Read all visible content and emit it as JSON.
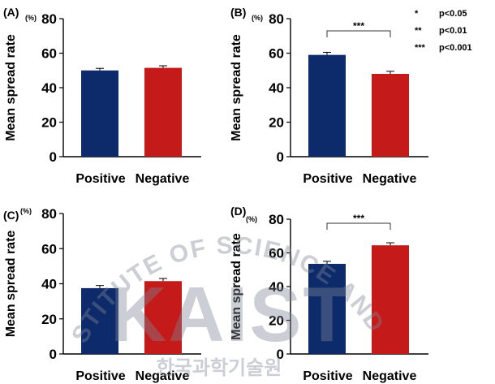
{
  "chart_data": [
    {
      "panel": "(A)",
      "type": "bar",
      "unit": "(%)",
      "ylabel": "Mean spread rate",
      "categories": [
        "Positive",
        "Negative"
      ],
      "values": [
        50,
        51.5
      ],
      "errors": [
        1.2,
        1.2
      ],
      "ylim": [
        0,
        80
      ],
      "yticks": [
        "0",
        "20",
        "40",
        "60",
        "80"
      ],
      "significance": "",
      "colors": [
        "#0d2a6b",
        "#c41a1a"
      ]
    },
    {
      "panel": "(B)",
      "type": "bar",
      "unit": "(%)",
      "ylabel": "Mean spread rate",
      "categories": [
        "Positive",
        "Negative"
      ],
      "values": [
        59,
        48
      ],
      "errors": [
        1.5,
        1.5
      ],
      "ylim": [
        0,
        80
      ],
      "yticks": [
        "0",
        "20",
        "40",
        "60",
        "80"
      ],
      "significance": "***",
      "colors": [
        "#0d2a6b",
        "#c41a1a"
      ]
    },
    {
      "panel": "(C)",
      "type": "bar",
      "unit": "(%)",
      "ylabel": "Mean spread rate",
      "categories": [
        "Positive",
        "Negative"
      ],
      "values": [
        37.5,
        41.5
      ],
      "errors": [
        1.5,
        1.5
      ],
      "ylim": [
        0,
        80
      ],
      "yticks": [
        "0",
        "20",
        "40",
        "60",
        "80"
      ],
      "significance": "",
      "colors": [
        "#0d2a6b",
        "#c41a1a"
      ]
    },
    {
      "panel": "(D)",
      "type": "bar",
      "unit": "(%)",
      "ylabel": "Mean spread rate",
      "categories": [
        "Positive",
        "Negative"
      ],
      "values": [
        53.5,
        64.5
      ],
      "errors": [
        1.5,
        1.5
      ],
      "ylim": [
        0,
        80
      ],
      "yticks": [
        "0",
        "20",
        "40",
        "60",
        "80"
      ],
      "significance": "***",
      "colors": [
        "#0d2a6b",
        "#c41a1a"
      ]
    }
  ],
  "legend": [
    {
      "stars": "*",
      "label": "p<0.05"
    },
    {
      "stars": "**",
      "label": "p<0.01"
    },
    {
      "stars": "***",
      "label": "p<0.001"
    }
  ],
  "watermark": {
    "arc_text": "ADVANCED INSTITUTE OF SCIENCE AND TECHNOLOGY",
    "logo": "KAIST",
    "korean": "한국과학기술원",
    "color": "#7e8795"
  }
}
